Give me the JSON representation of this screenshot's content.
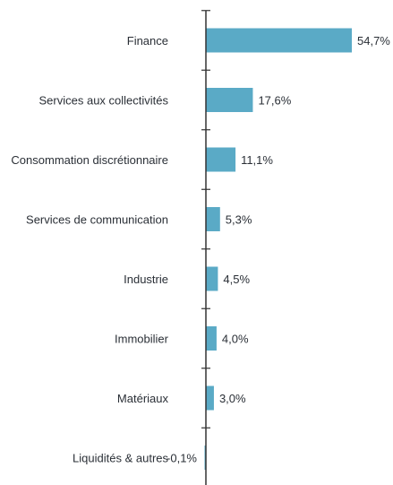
{
  "chart_data": {
    "type": "bar",
    "orientation": "horizontal",
    "categories": [
      "Finance",
      "Services aux collectivités",
      "Consommation discrétionnaire",
      "Services de communication",
      "Industrie",
      "Immobilier",
      "Matériaux",
      "Liquidités & autres"
    ],
    "values": [
      54.7,
      17.6,
      11.1,
      5.3,
      4.5,
      4.0,
      3.0,
      -0.1
    ],
    "value_labels": [
      "54,7%",
      "17,6%",
      "11,1%",
      "5,3%",
      "4,5%",
      "4,0%",
      "3,0%",
      "-0,1%"
    ],
    "xlim": [
      -0.1,
      54.7
    ],
    "bar_color": "#5aaac6",
    "axis_color": "#333333",
    "title": "",
    "xlabel": "",
    "ylabel": "",
    "grid": false,
    "legend": "none"
  }
}
